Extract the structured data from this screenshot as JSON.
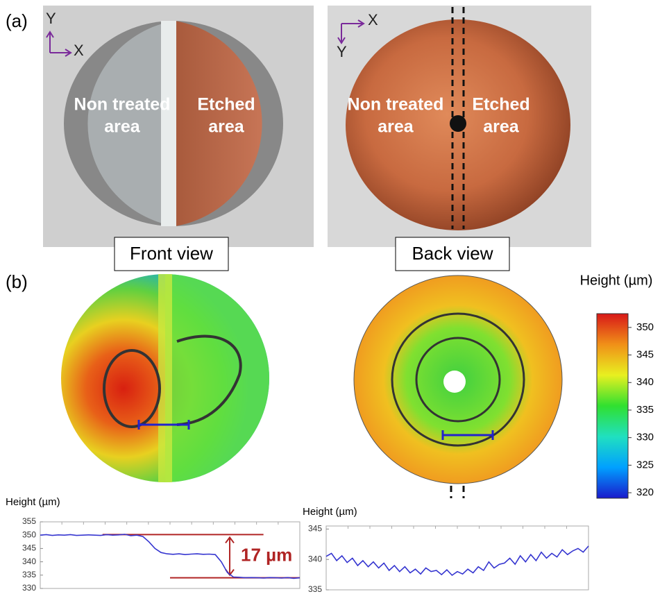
{
  "panel_labels": [
    "(a)",
    "(b)"
  ],
  "front_photo": {
    "axis_labels": [
      "Y",
      "X"
    ],
    "labels": [
      [
        "Non treated",
        "area"
      ],
      [
        "Etched",
        "area"
      ]
    ],
    "caption": "Front view"
  },
  "back_photo": {
    "axis_labels": [
      "X",
      "Y"
    ],
    "labels": [
      [
        "Non treated",
        "area"
      ],
      [
        "Etched",
        "area"
      ]
    ],
    "caption": "Back view"
  },
  "chart_data": [
    {
      "type": "colorbar",
      "title": "Height (µm)",
      "ylim": [
        319,
        352.5
      ],
      "yticks": [
        320,
        325,
        330,
        335,
        340,
        345,
        350
      ],
      "colors": [
        "#1a1acc",
        "#00a0ff",
        "#20e0c0",
        "#30e030",
        "#e8f020",
        "#f09018",
        "#d81818"
      ]
    },
    {
      "type": "line",
      "y_label": "Height (µm)",
      "ylim": [
        330,
        355
      ],
      "yticks": [
        330,
        335,
        340,
        345,
        350,
        355
      ],
      "series": [
        {
          "color": "#3535d0",
          "values": [
            350,
            350.2,
            349.9,
            350.1,
            350,
            350.2,
            349.9,
            350,
            350.1,
            350,
            349.9,
            350.2,
            350,
            350.1,
            350.3,
            349.8,
            350,
            349.5,
            347.5,
            345,
            343.5,
            343,
            342.8,
            343,
            342.7,
            342.9,
            343,
            342.8,
            342.9,
            342.7,
            340,
            336,
            334.3,
            334.2,
            334,
            334.1,
            334,
            333.9,
            334.1,
            334,
            333.9,
            334.1,
            333.8,
            334
          ]
        }
      ],
      "reference_lines": [
        {
          "value": 350.2,
          "color": "#b02424"
        },
        {
          "value": 334,
          "color": "#b02424"
        }
      ],
      "annotation": "17 µm"
    },
    {
      "type": "line",
      "y_label": "Height (µm)",
      "ylim": [
        335,
        345.5
      ],
      "yticks": [
        335,
        340,
        345
      ],
      "series": [
        {
          "color": "#3535d0",
          "values": [
            340.5,
            341,
            339.8,
            340.6,
            339.5,
            340.2,
            339,
            339.8,
            338.8,
            339.6,
            338.6,
            339.4,
            338.2,
            339,
            338,
            338.8,
            337.8,
            338.4,
            337.6,
            338.6,
            338,
            338.2,
            337.5,
            338.3,
            337.4,
            338,
            337.6,
            338.4,
            337.8,
            338.8,
            338.2,
            339.6,
            338.6,
            339.2,
            339.4,
            340.2,
            339.2,
            340.6,
            339.6,
            340.8,
            339.8,
            341.2,
            340.2,
            341,
            340.4,
            341.6,
            340.8,
            341.4,
            341.8,
            341.2,
            342.2
          ]
        }
      ]
    }
  ]
}
